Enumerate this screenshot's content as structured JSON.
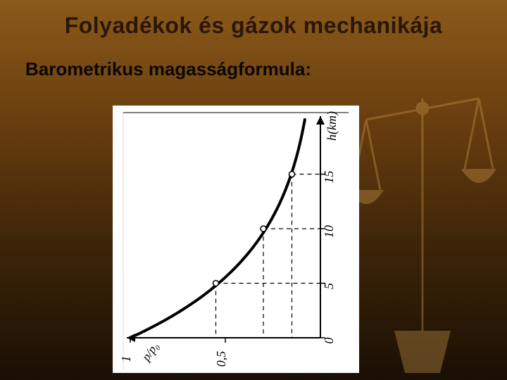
{
  "title": "Folyadékok és gázok mechanikája",
  "subtitle": "Barometrikus magasságformula:",
  "chart": {
    "type": "line",
    "background_color": "#ffffff",
    "stroke_color": "#000000",
    "curve_stroke_width": 4,
    "axis_stroke_width": 2,
    "dash_pattern": "6,5",
    "x_axis": {
      "label": "h(km)",
      "ticks": [
        "0",
        "5",
        "10",
        "15"
      ]
    },
    "y_axis": {
      "label": "p/p₀",
      "ticks": [
        "0,5",
        "1"
      ]
    },
    "curve_points": [
      {
        "h": 0,
        "ratio": 1.0
      },
      {
        "h": 5,
        "ratio": 0.55
      },
      {
        "h": 10,
        "ratio": 0.3
      },
      {
        "h": 15,
        "ratio": 0.15
      },
      {
        "h": 20,
        "ratio": 0.08
      }
    ],
    "marker_points": [
      {
        "h": 5,
        "ratio": 0.55
      },
      {
        "h": 10,
        "ratio": 0.3
      },
      {
        "h": 15,
        "ratio": 0.15
      }
    ],
    "marker_radius": 4
  }
}
